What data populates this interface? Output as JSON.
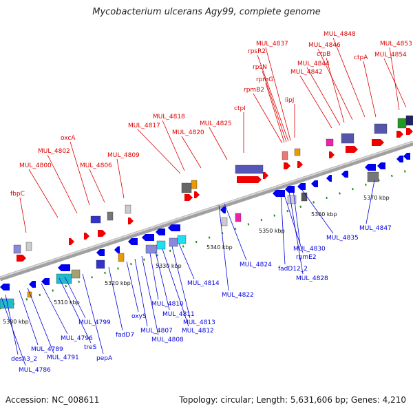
{
  "title": "Mycobacterium ulcerans Agy99, complete genome",
  "footer": {
    "accession": "Accession: NC_008611",
    "summary": "Topology: circular; Length: 5,631,606 bp; Genes: 4,210"
  },
  "colors": {
    "forward_label": "#dd0000",
    "reverse_label": "#0000dd",
    "backbone": "#8c8c8c",
    "dotted_track": "#228b22"
  },
  "scale_ticks": [
    "5300 kbp",
    "5310 kbp",
    "5320 kbp",
    "5330 kbp",
    "5340 kbp",
    "5350 kbp",
    "5360 kbp",
    "5370 kbp"
  ],
  "forward_genes": [
    "fbpC",
    "MUL_4800",
    "MUL_4802",
    "oxcA",
    "MUL_4806",
    "MUL_4809",
    "MUL_4817",
    "MUL_4818",
    "MUL_4820",
    "MUL_4825",
    "ctpI",
    "rpmB2",
    "rpmG",
    "rpsN",
    "rpsR2",
    "MUL_4837",
    "lipJ",
    "MUL_4842",
    "MUL_4844",
    "ctpB",
    "MUL_4846",
    "MUL_4848",
    "ctpA",
    "MUL_4853",
    "MUL_4854"
  ],
  "reverse_genes": [
    "MUL_4786",
    "desA3_2",
    "MUL_4789",
    "MUL_4791",
    "MUL_4796",
    "treS",
    "MUL_4799",
    "pepA",
    "fadD7",
    "oxyS",
    "MUL_4807",
    "MUL_4808",
    "MUL_4810",
    "MUL_4811",
    "MUL_4812",
    "MUL_4813",
    "MUL_4814",
    "MUL_4822",
    "MUL_4824",
    "fadD12_2",
    "rpmE2",
    "MUL_4828",
    "MUL_4830",
    "MUL_4835",
    "MUL_4847"
  ]
}
